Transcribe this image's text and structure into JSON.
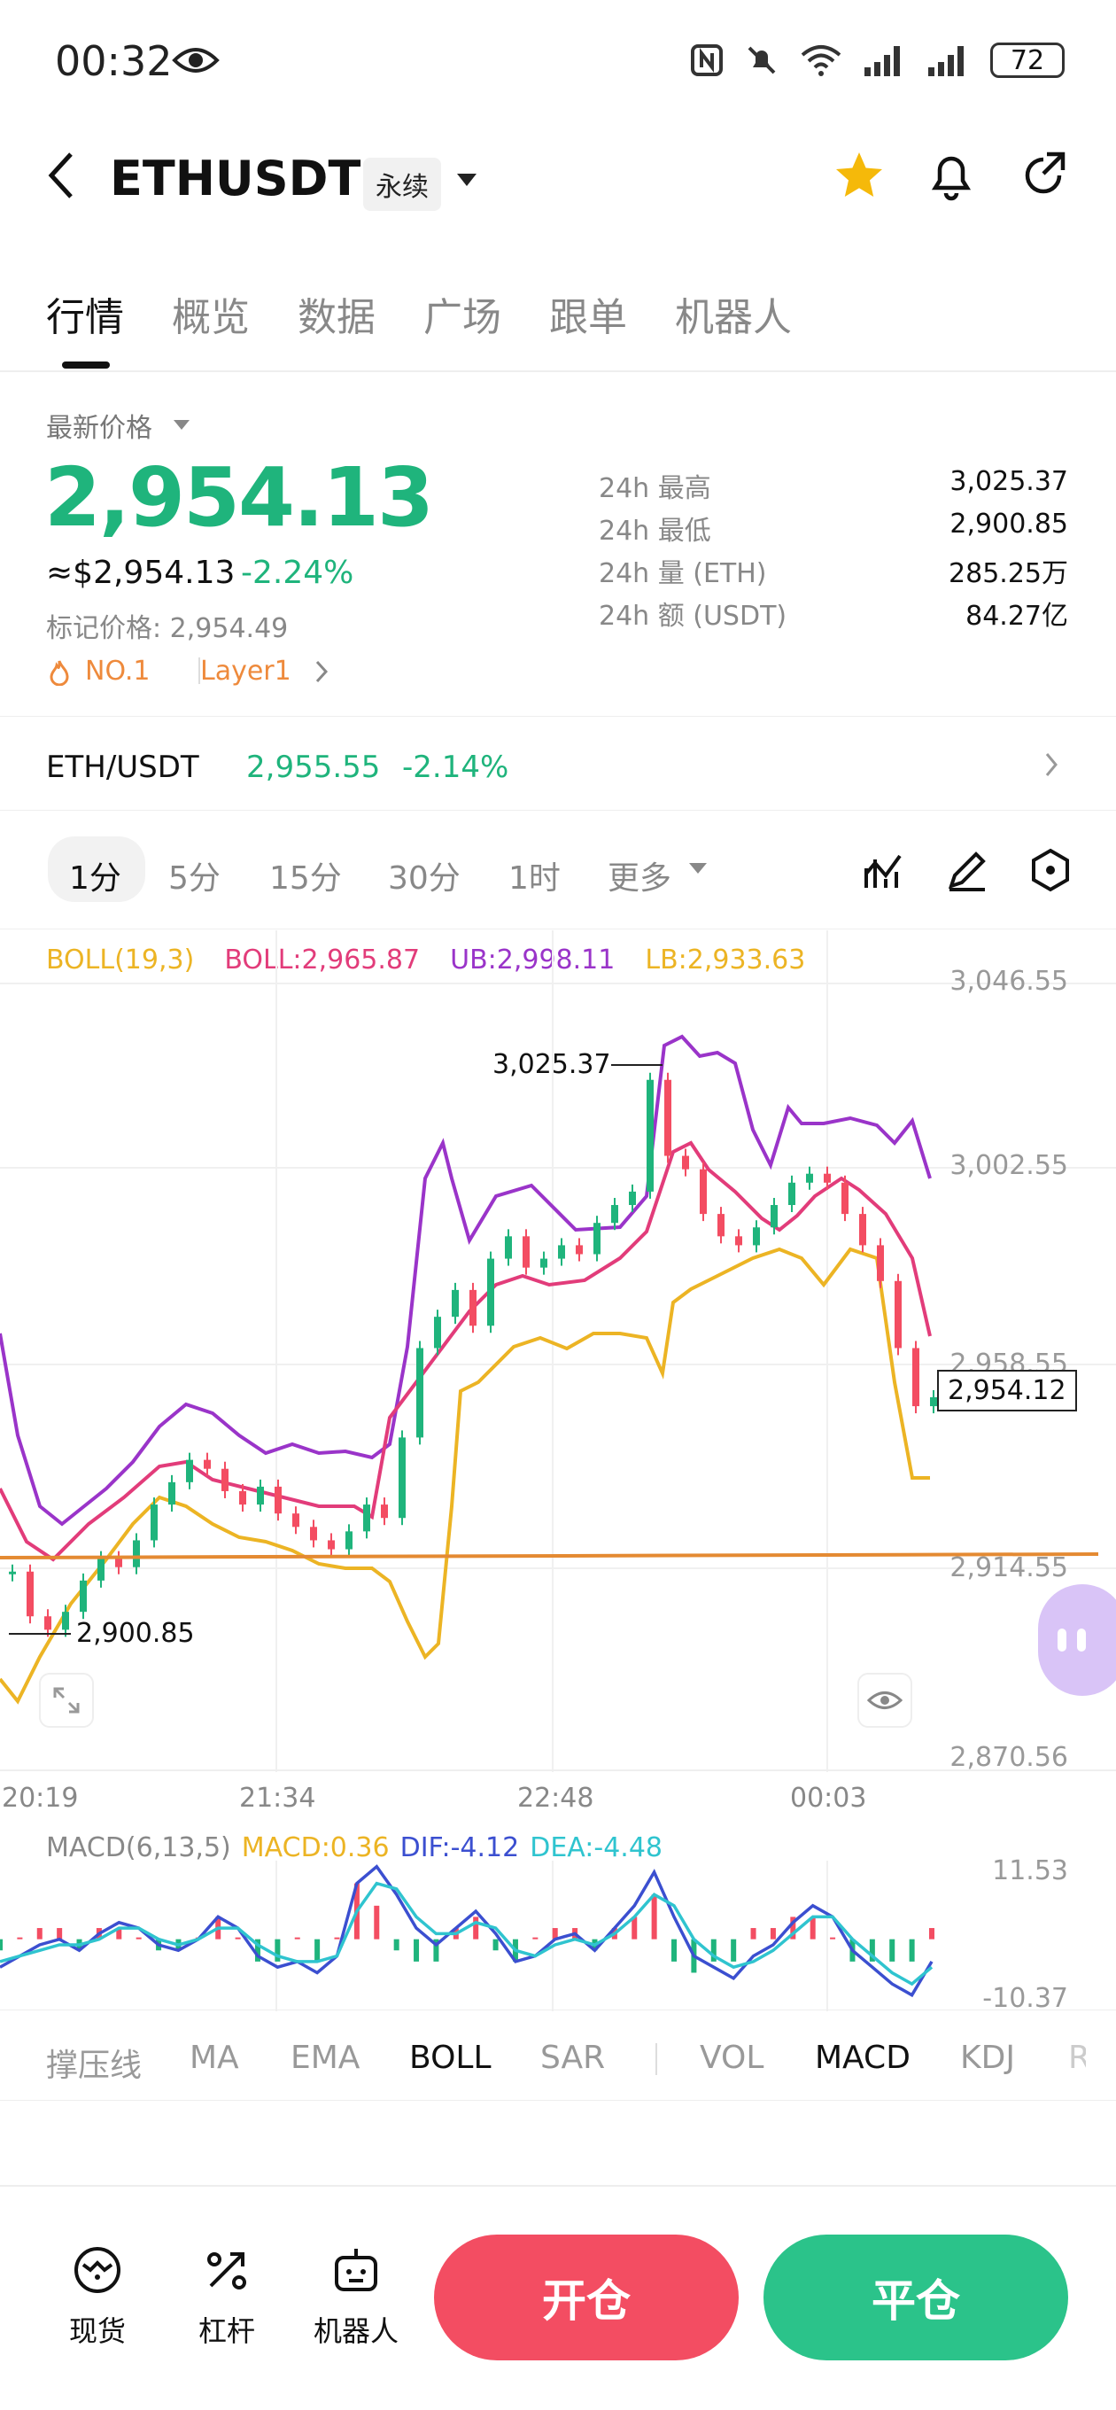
{
  "status_bar": {
    "time": "00:32",
    "battery": "72"
  },
  "header": {
    "symbol": "ETHUSDT",
    "contract_type": "永续"
  },
  "tabs": [
    "行情",
    "概览",
    "数据",
    "广场",
    "跟单",
    "机器人"
  ],
  "price": {
    "latest_label": "最新价格",
    "last": "2,954.13",
    "usd": "≈$2,954.13",
    "change_pct": "-2.24%",
    "mark_label": "标记价格: 2,954.49",
    "rank_tag": "NO.1",
    "category_tag": "Layer1"
  },
  "stats": [
    {
      "label": "24h  最高",
      "value": "3,025.37"
    },
    {
      "label": "24h  最低",
      "value": "2,900.85"
    },
    {
      "label": "24h  量 (ETH)",
      "value": "285.25万"
    },
    {
      "label": "24h  额 (USDT)",
      "value": "84.27亿"
    }
  ],
  "spot_row": {
    "pair": "ETH/USDT",
    "price": "2,955.55",
    "change": "-2.14%"
  },
  "intervals": [
    "1分",
    "5分",
    "15分",
    "30分",
    "1时",
    "更多"
  ],
  "boll": {
    "label": "BOLL(19,3)",
    "mid": "BOLL:2,965.87",
    "ub": "UB:2,998.11",
    "lb": "LB:2,933.63"
  },
  "colors": {
    "up": "#1fb47c",
    "down": "#f34d62",
    "boll_mid": "#e23c7a",
    "boll_ub": "#9a34c9",
    "boll_lb": "#ecb424",
    "macd_dif": "#3b4fd0",
    "macd_dea": "#2fc4cf",
    "accent_orange": "#ee8a3c"
  },
  "chart_data": {
    "type": "line",
    "y_ticks": [
      "3,046.55",
      "3,002.55",
      "2,958.55",
      "2,914.55",
      "2,870.56"
    ],
    "ylim": [
      2870.56,
      3046.55
    ],
    "x_ticks": [
      "20:19",
      "21:34",
      "22:48",
      "00:03"
    ],
    "high_label": "3,025.37",
    "low_label": "2,900.85",
    "last_price_label": "2,954.12",
    "price": [
      2915,
      2905,
      2902,
      2906,
      2913,
      2918,
      2916,
      2922,
      2930,
      2935,
      2940,
      2938,
      2933,
      2930,
      2934,
      2928,
      2925,
      2922,
      2920,
      2924,
      2930,
      2927,
      2945,
      2965,
      2972,
      2978,
      2970,
      2985,
      2990,
      2983,
      2985,
      2988,
      2986,
      2993,
      2997,
      3000,
      3025,
      3008,
      3005,
      2995,
      2990,
      2988,
      2992,
      2997,
      3002,
      3004,
      3002,
      2995,
      2988,
      2980,
      2965,
      2952,
      2954
    ]
  },
  "macd": {
    "label": "MACD(6,13,5)",
    "macd": "MACD:0.36",
    "dif": "DIF:-4.12",
    "dea": "DEA:-4.48",
    "y_ticks": [
      "11.53",
      "-10.37"
    ],
    "dif_values": [
      -5,
      -3,
      -1,
      0,
      -2,
      1,
      3,
      2,
      -1,
      -2,
      0,
      4,
      2,
      -3,
      -5,
      -4,
      -6,
      -3,
      10,
      13,
      8,
      2,
      -1,
      2,
      5,
      1,
      -4,
      -3,
      0,
      1,
      -2,
      2,
      6,
      12,
      4,
      -3,
      -5,
      -7,
      -3,
      -1,
      3,
      6,
      4,
      -2,
      -5,
      -8,
      -10,
      -4
    ],
    "dea_values": [
      -4,
      -3,
      -2,
      -1,
      -1,
      0,
      2,
      2,
      0,
      -1,
      0,
      2,
      2,
      -1,
      -3,
      -4,
      -4,
      -3,
      5,
      10,
      9,
      4,
      1,
      1,
      3,
      2,
      -2,
      -3,
      -1,
      0,
      -1,
      1,
      4,
      8,
      6,
      0,
      -3,
      -5,
      -4,
      -2,
      1,
      4,
      4,
      0,
      -3,
      -6,
      -8,
      -5
    ]
  },
  "indicators": [
    "撑压线",
    "MA",
    "EMA",
    "BOLL",
    "SAR",
    "VOL",
    "MACD",
    "KDJ",
    "R"
  ],
  "bottom_nav": [
    "现货",
    "杠杆",
    "机器人"
  ],
  "actions": {
    "open": "开仓",
    "close": "平仓"
  }
}
